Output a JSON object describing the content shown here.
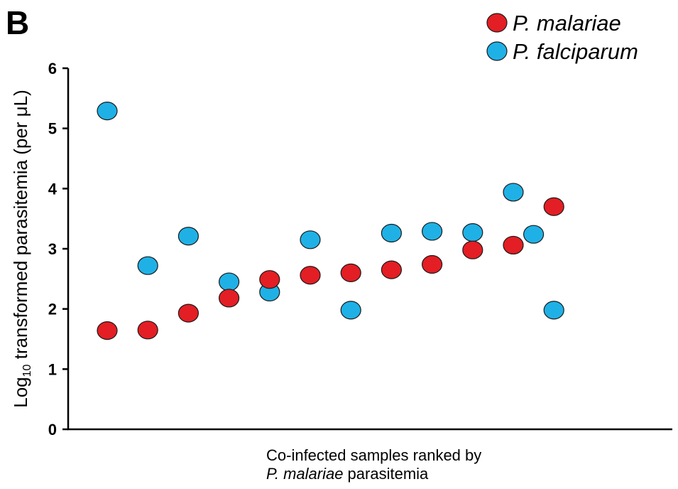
{
  "panel_label": "B",
  "colors": {
    "p_malariae": "#e31e24",
    "p_falciparum": "#1fb1e6",
    "stroke": "#1a1a1a"
  },
  "chart_data": {
    "type": "scatter",
    "ylabel": {
      "prefix": "Log",
      "subscript": "10",
      "suffix": " transformed parasitemia (per μL)"
    },
    "xlabel": {
      "line1": "Co-infected samples ranked by",
      "line2_italic": "P. malariae",
      "line2_rest": " parasitemia"
    },
    "ylim": [
      0,
      6
    ],
    "yticks": [
      "0",
      "1",
      "2",
      "3",
      "4",
      "5",
      "6"
    ],
    "legend_position": "top-right",
    "grid": false,
    "series": [
      {
        "name": "P. malariae",
        "color": "#e31e24",
        "values": [
          1.64,
          1.65,
          1.93,
          2.18,
          2.49,
          2.56,
          2.6,
          2.65,
          2.74,
          2.98,
          3.06,
          3.7
        ]
      },
      {
        "name": "P. falciparum",
        "color": "#1fb1e6",
        "values": [
          5.29,
          2.72,
          3.21,
          2.45,
          2.28,
          3.15,
          1.98,
          3.26,
          3.29,
          3.27,
          3.94,
          3.24,
          1.98
        ]
      }
    ],
    "x_rank": {
      "p_malariae": [
        1,
        2,
        3,
        4,
        5,
        6,
        7,
        8,
        9,
        10,
        11,
        12
      ],
      "p_falciparum": [
        1,
        2,
        3,
        4,
        5,
        6,
        7,
        8,
        9,
        10,
        11,
        11.5,
        12
      ]
    }
  }
}
